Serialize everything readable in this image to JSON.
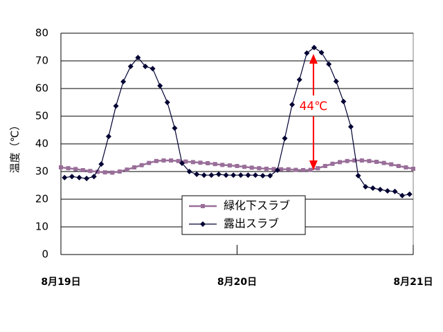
{
  "chart_data": {
    "type": "line",
    "ylabel": "温度（℃）",
    "ylim": [
      0,
      80
    ],
    "yticks": [
      0,
      10,
      20,
      30,
      40,
      50,
      60,
      70,
      80
    ],
    "grid": true,
    "legend_position": "bottom-center",
    "x_tick_labels": [
      "8月19日",
      "8月20日",
      "8月21日"
    ],
    "x_tick_positions": [
      0,
      24,
      48
    ],
    "x_range": [
      0,
      48
    ],
    "series": [
      {
        "name": "緑化下スラブ",
        "color": "#996e99",
        "marker": "square",
        "x": [
          0,
          1,
          2,
          3,
          4,
          5,
          6,
          7,
          8,
          9,
          10,
          11,
          12,
          13,
          14,
          15,
          16,
          17,
          18,
          19,
          20,
          21,
          22,
          23,
          24,
          25,
          26,
          27,
          28,
          29,
          30,
          31,
          32,
          33,
          34,
          35,
          36,
          37,
          38,
          39,
          40,
          41,
          42,
          43,
          44,
          45,
          46,
          47,
          48
        ],
        "values": [
          31.5,
          31.2,
          30.9,
          30.5,
          30.2,
          29.9,
          29.7,
          29.6,
          30.0,
          30.7,
          31.5,
          32.3,
          33.1,
          33.8,
          34.0,
          34.0,
          33.8,
          33.6,
          33.4,
          33.2,
          33.0,
          32.7,
          32.4,
          32.2,
          32.0,
          31.7,
          31.4,
          31.2,
          31.0,
          30.9,
          30.8,
          30.8,
          30.6,
          30.5,
          30.6,
          31.2,
          32.0,
          32.8,
          33.4,
          33.8,
          34.0,
          34.0,
          33.8,
          33.5,
          33.1,
          32.6,
          32.0,
          31.5,
          31.0
        ]
      },
      {
        "name": "露出スラブ",
        "color": "#000033",
        "marker": "diamond",
        "x": [
          0.5,
          1.5,
          2.5,
          3.5,
          4.5,
          5.5,
          6.5,
          7.5,
          8.5,
          9.5,
          10.5,
          11.5,
          12.5,
          13.5,
          14.5,
          15.5,
          16.5,
          17.5,
          18.5,
          19.5,
          20.5,
          21.5,
          22.5,
          23.5,
          24.5,
          25.5,
          26.5,
          27.5,
          28.5,
          29.5,
          30.5,
          31.5,
          32.5,
          33.5,
          34.5,
          35.5,
          36.5,
          37.5,
          38.5,
          39.5,
          40.5,
          41.5,
          42.5,
          43.5,
          44.5,
          45.5,
          46.5,
          47.5
        ],
        "values": [
          27.8,
          28.2,
          27.8,
          27.5,
          28.2,
          32.7,
          42.7,
          53.7,
          62.5,
          68.0,
          71.2,
          68.0,
          67.2,
          61.0,
          55.0,
          45.7,
          33.0,
          30.0,
          29.0,
          28.7,
          28.7,
          29.0,
          28.7,
          28.7,
          28.7,
          28.7,
          28.7,
          28.5,
          28.5,
          30.5,
          42.0,
          54.2,
          63.2,
          72.8,
          74.8,
          73.0,
          68.8,
          62.6,
          55.3,
          46.2,
          28.5,
          24.5,
          24.0,
          23.5,
          23.0,
          22.8,
          21.3,
          21.8
        ]
      }
    ],
    "annotations": [
      {
        "text": "44℃",
        "color": "#ff0000",
        "x": 34.5,
        "y_from": 30.5,
        "y_to": 72.5,
        "label_y": 53.5
      }
    ]
  }
}
